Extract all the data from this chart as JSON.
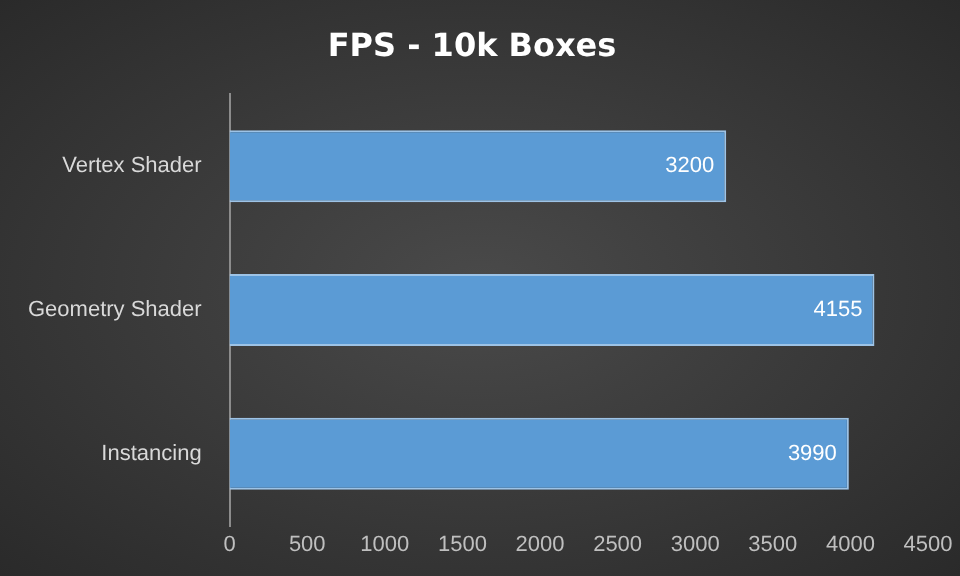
{
  "chart_data": {
    "type": "bar",
    "title": "FPS - 10k Boxes",
    "orientation": "horizontal",
    "categories": [
      "Vertex Shader",
      "Geometry Shader",
      "Instancing"
    ],
    "values": [
      3200,
      4155,
      3990
    ],
    "color": "#5b9bd5",
    "xlim": [
      0,
      4500
    ],
    "xticks": [
      0,
      500,
      1000,
      1500,
      2000,
      2500,
      3000,
      3500,
      4000,
      4500
    ],
    "grid": false,
    "legend": false,
    "data_labels": true
  }
}
